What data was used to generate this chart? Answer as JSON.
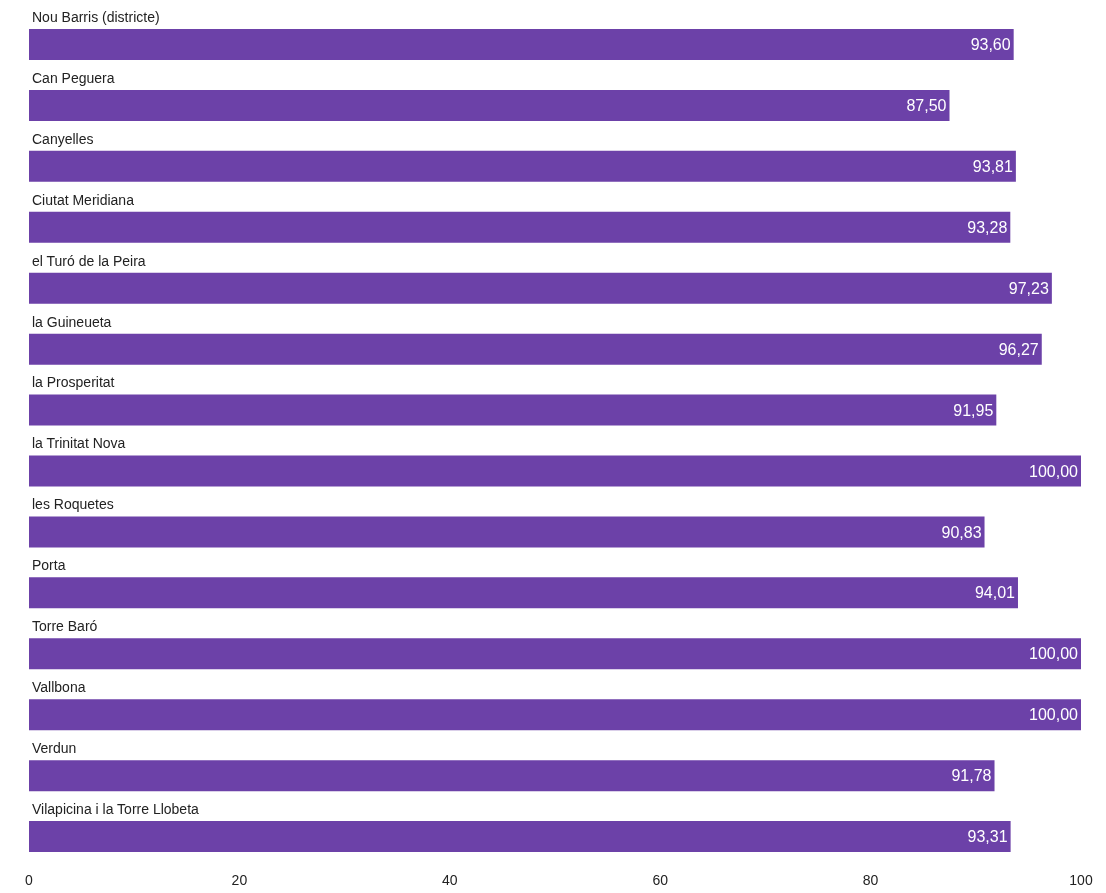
{
  "chart_data": {
    "type": "bar",
    "orientation": "horizontal",
    "categories": [
      "Nou Barris (districte)",
      "Can Peguera",
      "Canyelles",
      "Ciutat Meridiana",
      "el Turó de la Peira",
      "la Guineueta",
      "la Prosperitat",
      "la Trinitat Nova",
      "les Roquetes",
      "Porta",
      "Torre Baró",
      "Vallbona",
      "Verdun",
      "Vilapicina i la Torre Llobeta"
    ],
    "values": [
      93.6,
      87.5,
      93.81,
      93.28,
      97.23,
      96.27,
      91.95,
      100.0,
      90.83,
      94.01,
      100.0,
      100.0,
      91.78,
      93.31
    ],
    "value_labels": [
      "93,60",
      "87,50",
      "93,81",
      "93,28",
      "97,23",
      "96,27",
      "91,95",
      "100,00",
      "90,83",
      "94,01",
      "100,00",
      "100,00",
      "91,78",
      "93,31"
    ],
    "color": "#6c41a8",
    "xlim": [
      0,
      100
    ],
    "xticks": [
      0,
      20,
      40,
      60,
      80,
      100
    ]
  }
}
